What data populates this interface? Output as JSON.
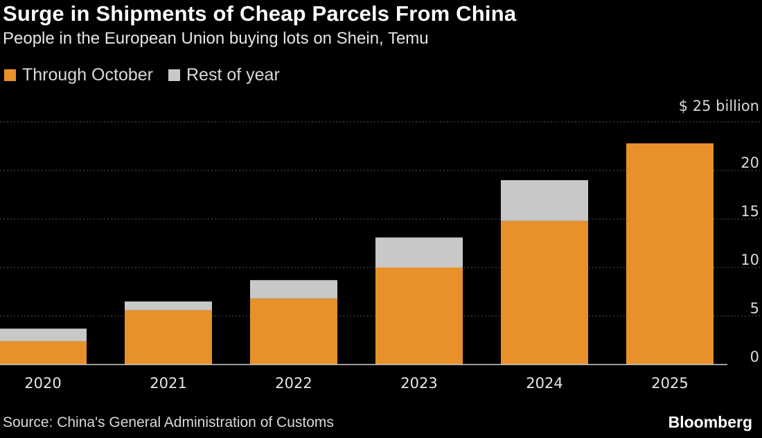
{
  "header": {
    "title": "Surge in Shipments of Cheap Parcels From China",
    "subtitle": "People in the European Union buying lots on Shein, Temu"
  },
  "legend": {
    "items": [
      {
        "label": "Through October",
        "color": "#e8912a"
      },
      {
        "label": "Rest of year",
        "color": "#c8c8c8"
      }
    ]
  },
  "chart_data": {
    "type": "bar",
    "stacked": true,
    "categories": [
      "2020",
      "2021",
      "2022",
      "2023",
      "2024",
      "2025"
    ],
    "series": [
      {
        "name": "Through October",
        "color": "#e8912a",
        "values": [
          2.4,
          5.6,
          6.8,
          10.0,
          14.8,
          22.8
        ]
      },
      {
        "name": "Rest of year",
        "color": "#c8c8c8",
        "values": [
          1.3,
          0.9,
          1.9,
          3.1,
          4.2,
          0
        ]
      }
    ],
    "ylim": [
      0,
      25
    ],
    "yticks": [
      0,
      5,
      10,
      15,
      20,
      25
    ],
    "ytick_labels": [
      "0",
      "5",
      "10",
      "15",
      "20",
      "$ 25 billion"
    ],
    "xlabel": "",
    "ylabel": "",
    "grid": true,
    "axis_side": "right"
  },
  "footer": {
    "source": "Source: China's General Administration of Customs",
    "brand": "Bloomberg"
  }
}
